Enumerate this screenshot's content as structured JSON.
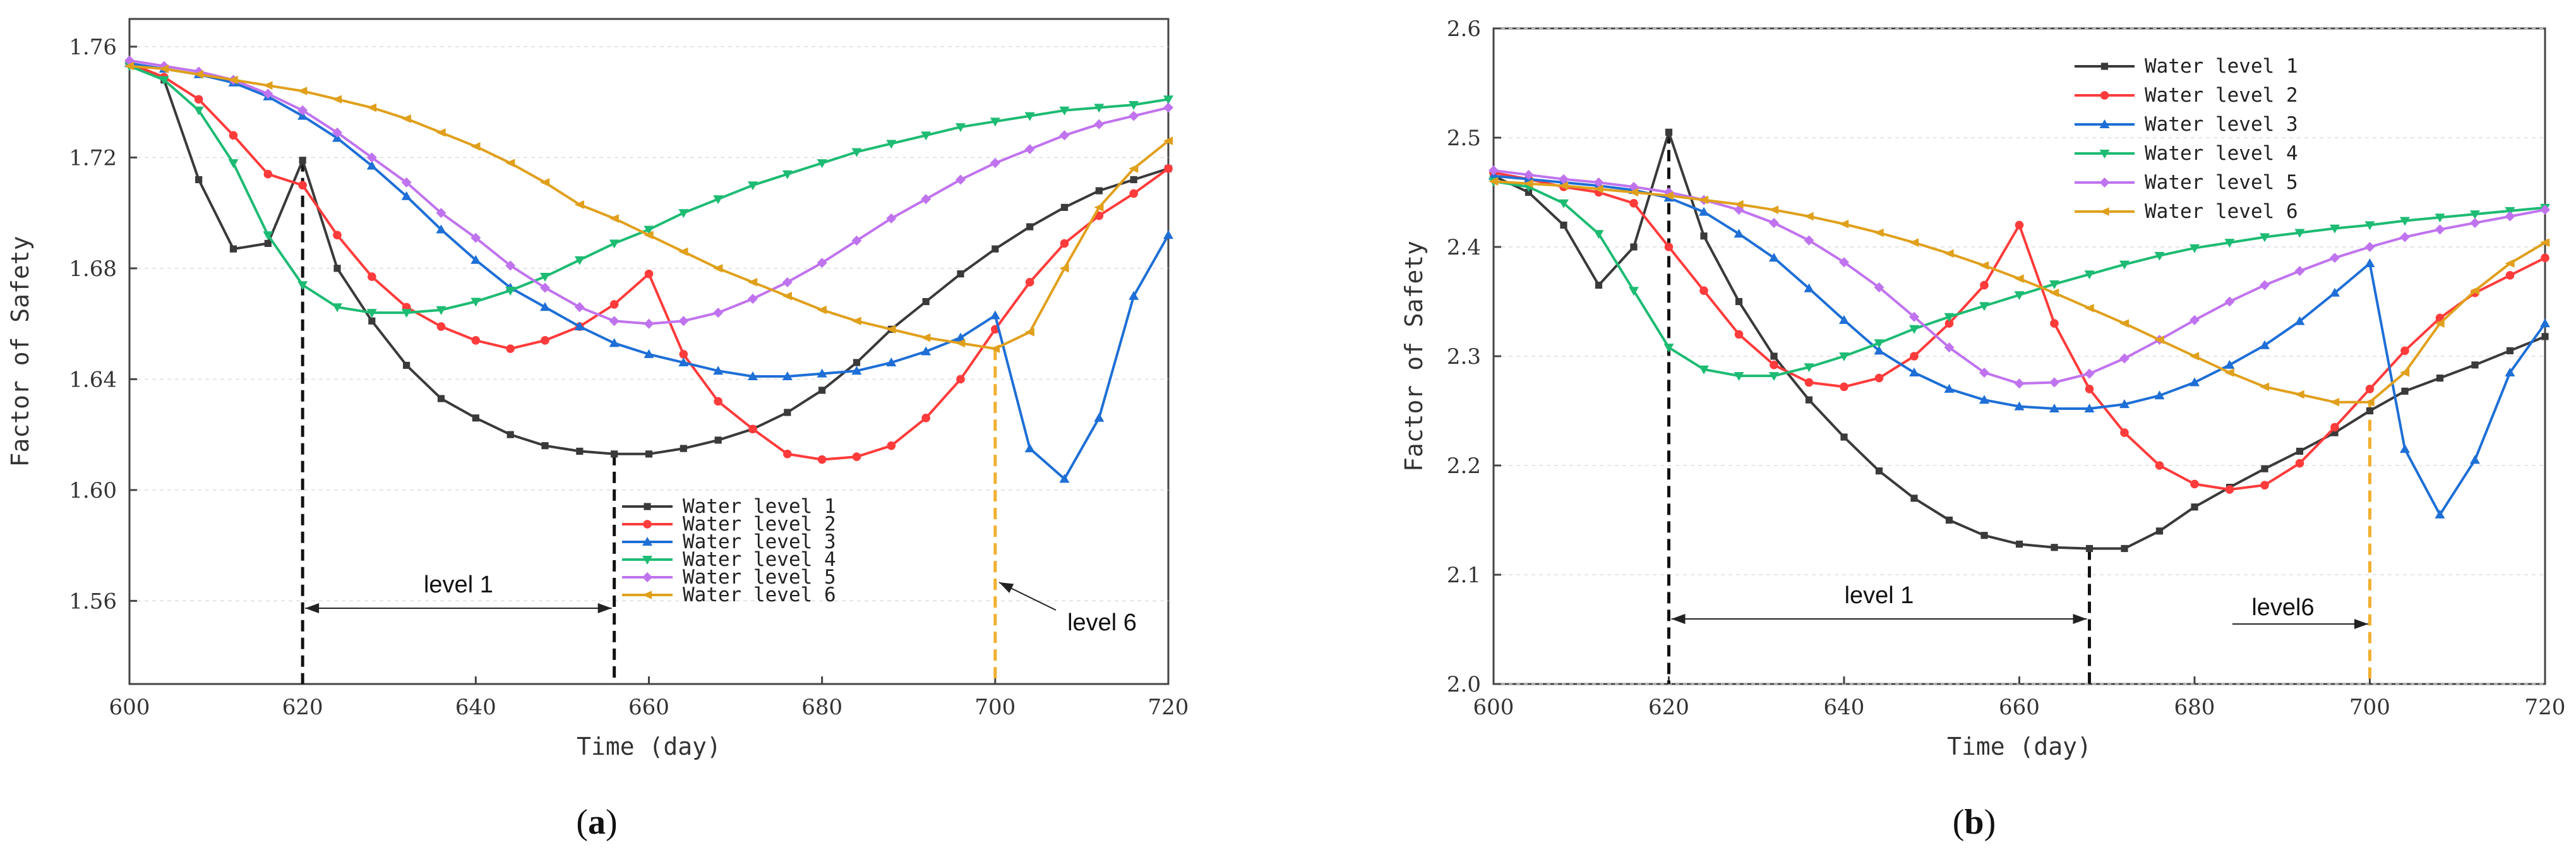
{
  "colors": {
    "series": [
      "#3a3a3a",
      "#ff3b3b",
      "#1e6fd6",
      "#1dbb73",
      "#c073ee",
      "#e0a01c"
    ],
    "annotation_black": "#111111",
    "annotation_gold": "#f0b030",
    "axis": "#444444",
    "grid": "#dddddd"
  },
  "panels": [
    {
      "label_prefix": "(",
      "label_letter": "a",
      "label_suffix": ")",
      "annotations": {
        "span_label": "level 1",
        "level6_label": "level 6"
      }
    },
    {
      "label_prefix": "(",
      "label_letter": "b",
      "label_suffix": ")",
      "annotations": {
        "span_label": "level 1",
        "level6_label": "level6"
      }
    }
  ],
  "chart_data": [
    {
      "type": "line",
      "xlabel": "Time (day)",
      "ylabel": "Factor of Safety",
      "xlim": [
        600,
        720
      ],
      "ylim": [
        1.53,
        1.77
      ],
      "xticks": [
        "600",
        "620",
        "640",
        "660",
        "680",
        "700",
        "720"
      ],
      "yticks": [
        "1.56",
        "1.60",
        "1.64",
        "1.68",
        "1.72",
        "1.76"
      ],
      "x": [
        600,
        604,
        608,
        612,
        616,
        620,
        624,
        628,
        632,
        636,
        640,
        644,
        648,
        652,
        656,
        660,
        664,
        668,
        672,
        676,
        680,
        684,
        688,
        692,
        696,
        700,
        704,
        708,
        712,
        716,
        720
      ],
      "series": [
        {
          "name": "Water level 1",
          "values": [
            1.754,
            1.748,
            1.712,
            1.687,
            1.689,
            1.719,
            1.68,
            1.661,
            1.645,
            1.633,
            1.626,
            1.62,
            1.616,
            1.614,
            1.613,
            1.613,
            1.615,
            1.618,
            1.622,
            1.628,
            1.636,
            1.646,
            1.658,
            1.668,
            1.678,
            1.687,
            1.695,
            1.702,
            1.708,
            1.712,
            1.716
          ]
        },
        {
          "name": "Water level 2",
          "values": [
            1.754,
            1.749,
            1.741,
            1.728,
            1.714,
            1.71,
            1.692,
            1.677,
            1.666,
            1.659,
            1.654,
            1.651,
            1.654,
            1.659,
            1.667,
            1.678,
            1.649,
            1.632,
            1.622,
            1.613,
            1.611,
            1.612,
            1.616,
            1.626,
            1.64,
            1.658,
            1.675,
            1.689,
            1.699,
            1.707,
            1.716
          ]
        },
        {
          "name": "Water level 3",
          "values": [
            1.754,
            1.752,
            1.75,
            1.747,
            1.742,
            1.735,
            1.727,
            1.717,
            1.706,
            1.694,
            1.683,
            1.673,
            1.666,
            1.659,
            1.653,
            1.649,
            1.646,
            1.643,
            1.641,
            1.641,
            1.642,
            1.643,
            1.646,
            1.65,
            1.655,
            1.663,
            1.615,
            1.604,
            1.626,
            1.67,
            1.692
          ]
        },
        {
          "name": "Water level 4",
          "values": [
            1.753,
            1.748,
            1.737,
            1.718,
            1.692,
            1.674,
            1.666,
            1.664,
            1.664,
            1.665,
            1.668,
            1.672,
            1.677,
            1.683,
            1.689,
            1.694,
            1.7,
            1.705,
            1.71,
            1.714,
            1.718,
            1.722,
            1.725,
            1.728,
            1.731,
            1.733,
            1.735,
            1.737,
            1.738,
            1.739,
            1.741
          ]
        },
        {
          "name": "Water level 5",
          "values": [
            1.755,
            1.753,
            1.751,
            1.748,
            1.743,
            1.737,
            1.729,
            1.72,
            1.711,
            1.7,
            1.691,
            1.681,
            1.673,
            1.666,
            1.661,
            1.66,
            1.661,
            1.664,
            1.669,
            1.675,
            1.682,
            1.69,
            1.698,
            1.705,
            1.712,
            1.718,
            1.723,
            1.728,
            1.732,
            1.735,
            1.738
          ]
        },
        {
          "name": "Water level 6",
          "values": [
            1.753,
            1.752,
            1.75,
            1.748,
            1.746,
            1.744,
            1.741,
            1.738,
            1.734,
            1.729,
            1.724,
            1.718,
            1.711,
            1.703,
            1.698,
            1.692,
            1.686,
            1.68,
            1.675,
            1.67,
            1.665,
            1.661,
            1.658,
            1.655,
            1.653,
            1.651,
            1.657,
            1.68,
            1.702,
            1.716,
            1.726
          ]
        }
      ],
      "annotations": {
        "span_start_x": 620,
        "span_end_x": 656,
        "level6_x": 700
      },
      "legend_position": "bottom-center"
    },
    {
      "type": "line",
      "xlabel": "Time (day)",
      "ylabel": "Factor of Safety",
      "xlim": [
        600,
        720
      ],
      "ylim": [
        2.0,
        2.6
      ],
      "xticks": [
        "600",
        "620",
        "640",
        "660",
        "680",
        "700",
        "720"
      ],
      "yticks": [
        "2.0",
        "2.1",
        "2.2",
        "2.3",
        "2.4",
        "2.5",
        "2.6"
      ],
      "x": [
        600,
        604,
        608,
        612,
        616,
        620,
        624,
        628,
        632,
        636,
        640,
        644,
        648,
        652,
        656,
        660,
        664,
        668,
        672,
        676,
        680,
        684,
        688,
        692,
        696,
        700,
        704,
        708,
        712,
        716,
        720
      ],
      "series": [
        {
          "name": "Water level 1",
          "values": [
            2.465,
            2.45,
            2.42,
            2.365,
            2.4,
            2.505,
            2.41,
            2.35,
            2.3,
            2.26,
            2.226,
            2.195,
            2.17,
            2.15,
            2.136,
            2.128,
            2.125,
            2.124,
            2.124,
            2.14,
            2.162,
            2.18,
            2.197,
            2.213,
            2.23,
            2.25,
            2.268,
            2.28,
            2.292,
            2.305,
            2.318
          ]
        },
        {
          "name": "Water level 2",
          "values": [
            2.468,
            2.462,
            2.455,
            2.45,
            2.44,
            2.4,
            2.36,
            2.32,
            2.292,
            2.276,
            2.272,
            2.28,
            2.3,
            2.33,
            2.365,
            2.42,
            2.33,
            2.27,
            2.23,
            2.2,
            2.183,
            2.178,
            2.182,
            2.202,
            2.235,
            2.27,
            2.305,
            2.335,
            2.358,
            2.374,
            2.39
          ]
        },
        {
          "name": "Water level 3",
          "values": [
            2.465,
            2.462,
            2.459,
            2.456,
            2.452,
            2.445,
            2.432,
            2.412,
            2.39,
            2.362,
            2.333,
            2.305,
            2.285,
            2.27,
            2.26,
            2.254,
            2.252,
            2.252,
            2.256,
            2.264,
            2.276,
            2.292,
            2.31,
            2.332,
            2.358,
            2.385,
            2.215,
            2.155,
            2.205,
            2.285,
            2.33
          ]
        },
        {
          "name": "Water level 4",
          "values": [
            2.46,
            2.455,
            2.44,
            2.412,
            2.36,
            2.308,
            2.288,
            2.282,
            2.282,
            2.29,
            2.3,
            2.312,
            2.325,
            2.336,
            2.346,
            2.356,
            2.366,
            2.375,
            2.384,
            2.392,
            2.399,
            2.404,
            2.409,
            2.413,
            2.417,
            2.42,
            2.424,
            2.427,
            2.43,
            2.433,
            2.436
          ]
        },
        {
          "name": "Water level 5",
          "values": [
            2.47,
            2.466,
            2.462,
            2.459,
            2.455,
            2.45,
            2.443,
            2.434,
            2.422,
            2.406,
            2.386,
            2.363,
            2.336,
            2.308,
            2.285,
            2.275,
            2.276,
            2.284,
            2.298,
            2.315,
            2.333,
            2.35,
            2.365,
            2.378,
            2.39,
            2.4,
            2.409,
            2.416,
            2.422,
            2.428,
            2.434
          ]
        },
        {
          "name": "Water level 6",
          "values": [
            2.46,
            2.458,
            2.456,
            2.453,
            2.45,
            2.447,
            2.443,
            2.439,
            2.434,
            2.428,
            2.421,
            2.413,
            2.404,
            2.394,
            2.383,
            2.371,
            2.358,
            2.344,
            2.33,
            2.315,
            2.3,
            2.285,
            2.272,
            2.265,
            2.258,
            2.258,
            2.285,
            2.33,
            2.36,
            2.385,
            2.404
          ]
        }
      ],
      "annotations": {
        "span_start_x": 620,
        "span_end_x": 668,
        "level6_x": 700
      },
      "legend_position": "top-left"
    }
  ]
}
